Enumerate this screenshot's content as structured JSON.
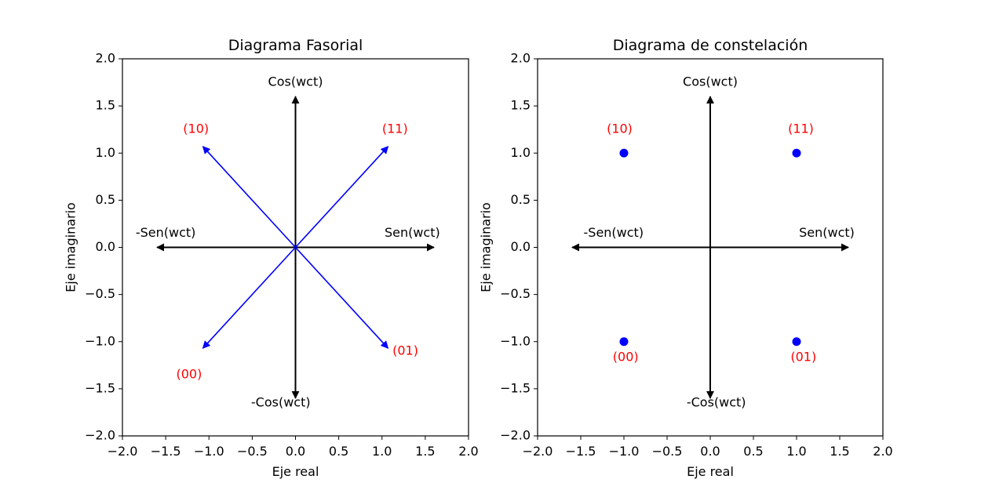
{
  "chart_data": [
    {
      "type": "scatter",
      "title": "Diagrama Fasorial",
      "xlabel": "Eje real",
      "ylabel": "Eje imaginario",
      "xlim": [
        -2.0,
        2.0
      ],
      "ylim": [
        -2.0,
        2.0
      ],
      "xticks": [
        "−2.0",
        "−1.5",
        "−1.0",
        "−0.5",
        "0.0",
        "0.5",
        "1.0",
        "1.5",
        "2.0"
      ],
      "yticks": [
        "−2.0",
        "−1.5",
        "−1.0",
        "−0.5",
        "0.0",
        "0.5",
        "1.0",
        "1.5",
        "2.0"
      ],
      "grid": false,
      "reference_axes": [
        {
          "from": [
            0,
            0
          ],
          "to": [
            0,
            1.6
          ],
          "label": "Cos(wct)",
          "label_at": [
            0,
            1.75
          ]
        },
        {
          "from": [
            0,
            0
          ],
          "to": [
            0,
            -1.6
          ],
          "label": "-Cos(wct)",
          "label_at": [
            -0.17,
            -1.65
          ]
        },
        {
          "from": [
            0,
            0
          ],
          "to": [
            1.6,
            0
          ],
          "label": "Sen(wct)",
          "label_at": [
            1.35,
            0.15
          ]
        },
        {
          "from": [
            0,
            0
          ],
          "to": [
            -1.6,
            0
          ],
          "label": "-Sen(wct)",
          "label_at": [
            -1.5,
            0.15
          ]
        }
      ],
      "phasors": [
        {
          "from": [
            0,
            0
          ],
          "to": [
            1.07,
            1.07
          ],
          "label": "(11)",
          "label_at": [
            1.15,
            1.25
          ]
        },
        {
          "from": [
            0,
            0
          ],
          "to": [
            -1.07,
            1.07
          ],
          "label": "(10)",
          "label_at": [
            -1.15,
            1.25
          ]
        },
        {
          "from": [
            0,
            0
          ],
          "to": [
            1.07,
            -1.07
          ],
          "label": "(01)",
          "label_at": [
            1.27,
            -1.1
          ]
        },
        {
          "from": [
            0,
            0
          ],
          "to": [
            -1.07,
            -1.07
          ],
          "label": "(00)",
          "label_at": [
            -1.23,
            -1.35
          ]
        }
      ]
    },
    {
      "type": "scatter",
      "title": "Diagrama de constelación",
      "xlabel": "Eje real",
      "ylabel": "Eje imaginario",
      "xlim": [
        -2.0,
        2.0
      ],
      "ylim": [
        -2.0,
        2.0
      ],
      "xticks": [
        "−2.0",
        "−1.5",
        "−1.0",
        "−0.5",
        "0.0",
        "0.5",
        "1.0",
        "1.5",
        "2.0"
      ],
      "yticks": [
        "−2.0",
        "−1.5",
        "−1.0",
        "−0.5",
        "0.0",
        "0.5",
        "1.0",
        "1.5",
        "2.0"
      ],
      "grid": false,
      "reference_axes": [
        {
          "from": [
            0,
            0
          ],
          "to": [
            0,
            1.6
          ],
          "label": "Cos(wct)",
          "label_at": [
            0,
            1.75
          ]
        },
        {
          "from": [
            0,
            0
          ],
          "to": [
            0,
            -1.6
          ],
          "label": "-Cos(wct)",
          "label_at": [
            0.07,
            -1.65
          ]
        },
        {
          "from": [
            0,
            0
          ],
          "to": [
            1.6,
            0
          ],
          "label": "Sen(wct)",
          "label_at": [
            1.35,
            0.15
          ]
        },
        {
          "from": [
            0,
            0
          ],
          "to": [
            -1.6,
            0
          ],
          "label": "-Sen(wct)",
          "label_at": [
            -1.12,
            0.15
          ]
        }
      ],
      "points": [
        {
          "x": 1,
          "y": 1,
          "label": "(11)",
          "label_at": [
            1.05,
            1.25
          ]
        },
        {
          "x": -1,
          "y": 1,
          "label": "(10)",
          "label_at": [
            -1.05,
            1.25
          ]
        },
        {
          "x": 1,
          "y": -1,
          "label": "(01)",
          "label_at": [
            1.08,
            -1.17
          ]
        },
        {
          "x": -1,
          "y": -1,
          "label": "(00)",
          "label_at": [
            -0.98,
            -1.17
          ]
        }
      ]
    }
  ],
  "colors": {
    "phasor": "#0000ff",
    "point": "#0000ff",
    "bit_label": "#ff0000",
    "reference": "#000000"
  }
}
